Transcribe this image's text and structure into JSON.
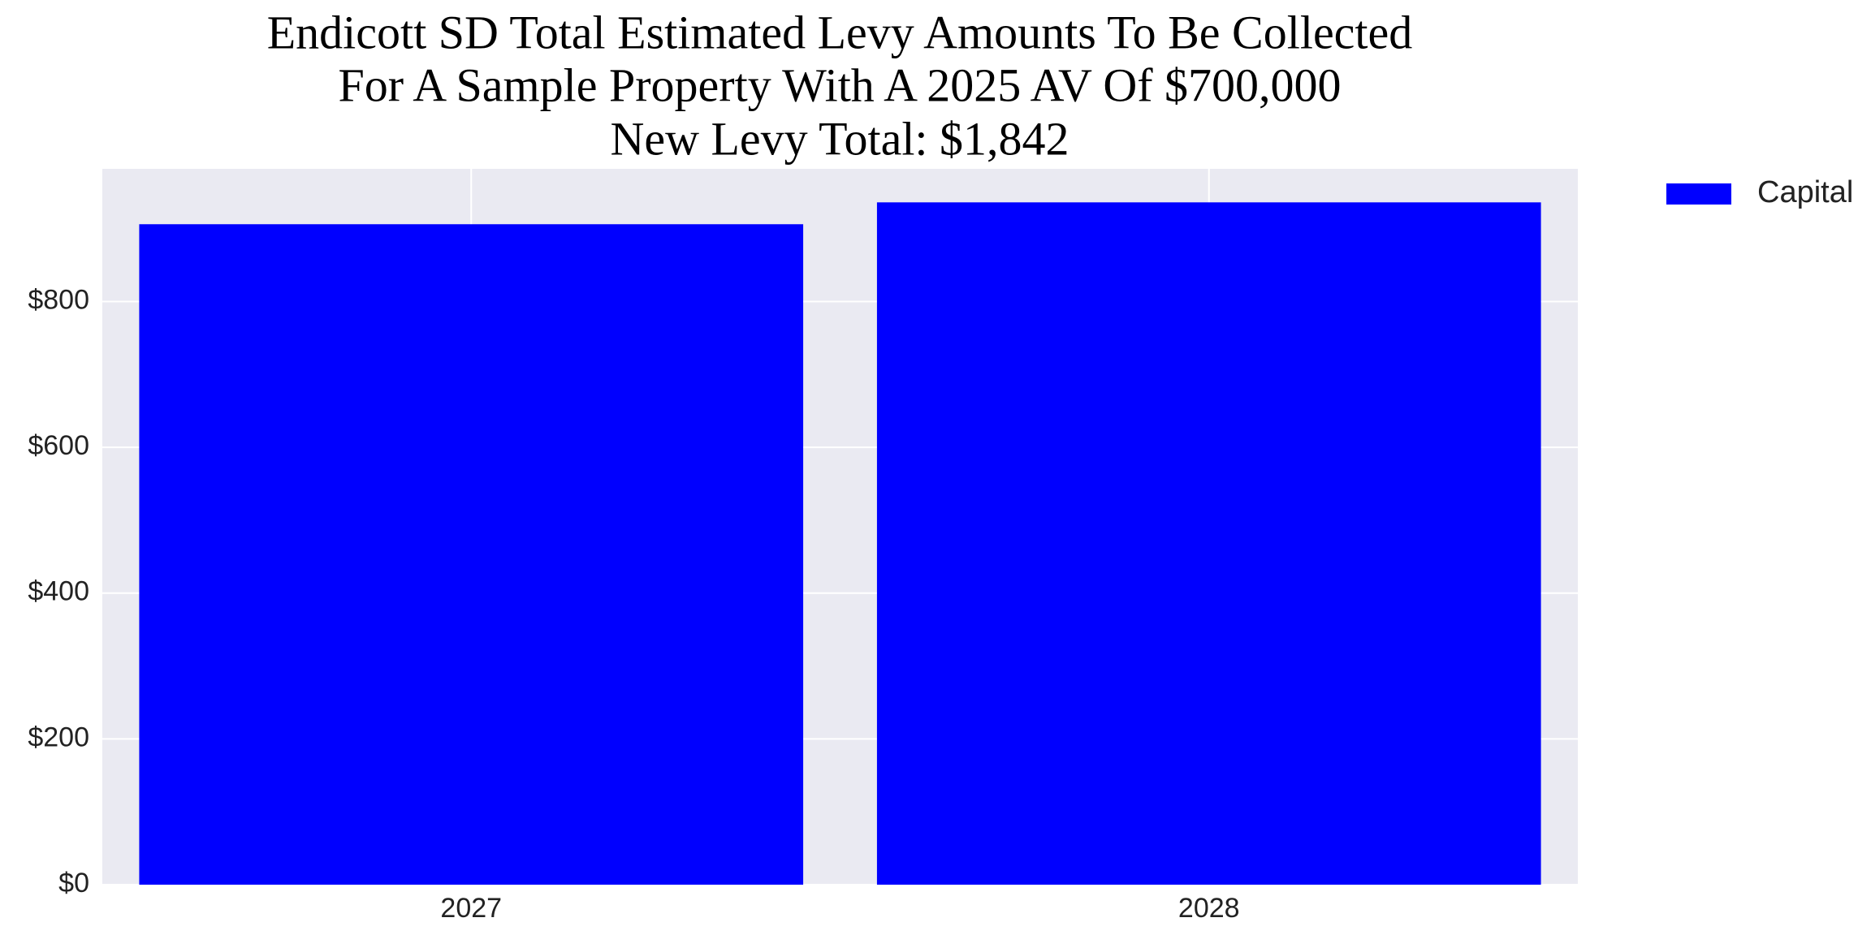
{
  "chart_data": {
    "type": "bar",
    "title": [
      "Endicott SD Total Estimated Levy Amounts To Be Collected",
      "For A Sample Property With A 2025 AV Of $700,000",
      "New Levy Total: $1,842"
    ],
    "categories": [
      "2027",
      "2028"
    ],
    "series": [
      {
        "name": "Capital",
        "color": "#0000ff",
        "values": [
          906,
          936
        ]
      }
    ],
    "ylim": [
      0,
      982
    ],
    "yticks": [
      {
        "value": 0,
        "label": "$0"
      },
      {
        "value": 200,
        "label": "$200"
      },
      {
        "value": 400,
        "label": "$400"
      },
      {
        "value": 600,
        "label": "$600"
      },
      {
        "value": 800,
        "label": "$800"
      }
    ],
    "grid": true,
    "legend": "outside-upper-right"
  }
}
